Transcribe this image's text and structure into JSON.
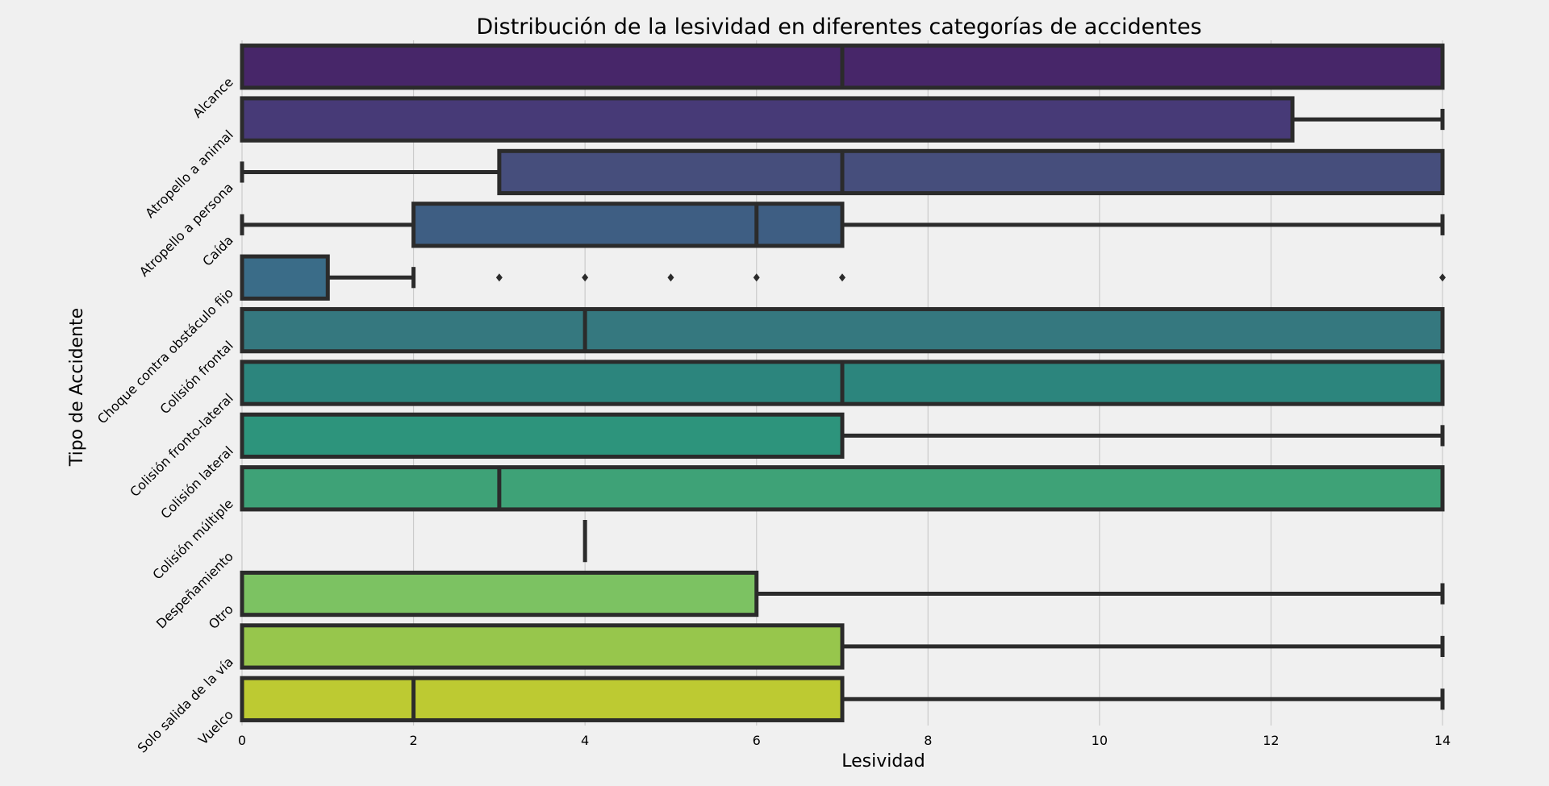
{
  "chart_data": {
    "type": "box",
    "orientation": "horizontal",
    "title": "Distribución de la lesividad en diferentes categorías de accidentes",
    "xlabel": "Lesividad",
    "ylabel": "Tipo de Accidente",
    "xlim": [
      0,
      14
    ],
    "xticks": [
      0,
      2,
      4,
      6,
      8,
      10,
      12,
      14
    ],
    "xtick_labels": [
      "0",
      "2",
      "4",
      "6",
      "8",
      "10",
      "12",
      "14"
    ],
    "grid": "vertical",
    "categories": [
      "Alcance",
      "Atropello a animal",
      "Atropello a persona",
      "Caída",
      "Choque contra obstáculo fijo",
      "Colisión frontal",
      "Colisión fronto-lateral",
      "Colisión lateral",
      "Colisión múltiple",
      "Despeñamiento",
      "Otro",
      "Solo salida de la vía",
      "Vuelco"
    ],
    "boxes": [
      {
        "whisker_low": 0,
        "q1": 0,
        "median": 7,
        "q3": 14,
        "whisker_high": 14,
        "fliers": [],
        "color": "#472669"
      },
      {
        "whisker_low": 0,
        "q1": 0,
        "median": 0,
        "q3": 12.25,
        "whisker_high": 14,
        "fliers": [],
        "color": "#473a77"
      },
      {
        "whisker_low": 0,
        "q1": 3,
        "median": 7,
        "q3": 14,
        "whisker_high": 14,
        "fliers": [],
        "color": "#464e7c"
      },
      {
        "whisker_low": 0,
        "q1": 2,
        "median": 6,
        "q3": 7,
        "whisker_high": 14,
        "fliers": [],
        "color": "#3e5e83"
      },
      {
        "whisker_low": 0,
        "q1": 0,
        "median": 0,
        "q3": 1,
        "whisker_high": 2,
        "fliers": [
          3,
          4,
          5,
          6,
          7,
          14
        ],
        "color": "#3a6c88"
      },
      {
        "whisker_low": 0,
        "q1": 0,
        "median": 4,
        "q3": 14,
        "whisker_high": 14,
        "fliers": [],
        "color": "#35787f"
      },
      {
        "whisker_low": 0,
        "q1": 0,
        "median": 7,
        "q3": 14,
        "whisker_high": 14,
        "fliers": [],
        "color": "#2c857d"
      },
      {
        "whisker_low": 0,
        "q1": 0,
        "median": 0,
        "q3": 7,
        "whisker_high": 14,
        "fliers": [],
        "color": "#2d947c"
      },
      {
        "whisker_low": 0,
        "q1": 0,
        "median": 3,
        "q3": 14,
        "whisker_high": 14,
        "fliers": [],
        "color": "#3ea277"
      },
      {
        "whisker_low": 4,
        "q1": 4,
        "median": 4,
        "q3": 4,
        "whisker_high": 4,
        "fliers": [],
        "color": "#5ab46a"
      },
      {
        "whisker_low": 0,
        "q1": 0,
        "median": 0,
        "q3": 6,
        "whisker_high": 14,
        "fliers": [],
        "color": "#7cc262"
      },
      {
        "whisker_low": 0,
        "q1": 0,
        "median": 0,
        "q3": 7,
        "whisker_high": 14,
        "fliers": [],
        "color": "#97c64c"
      },
      {
        "whisker_low": 0,
        "q1": 0,
        "median": 2,
        "q3": 7,
        "whisker_high": 14,
        "fliers": [],
        "color": "#bdca32"
      }
    ]
  }
}
